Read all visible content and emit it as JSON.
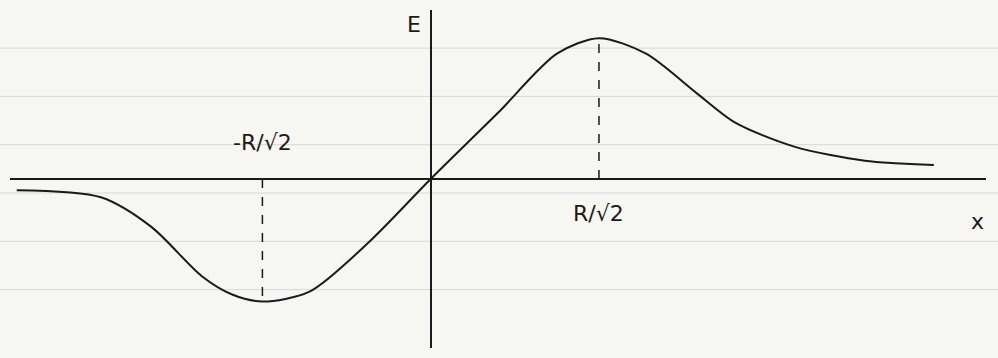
{
  "chart_data": {
    "type": "line",
    "x_label": "x",
    "y_label": "E",
    "x": [
      -2.46,
      -1.96,
      -1.66,
      -1.36,
      -1.18,
      -1,
      -0.72,
      -0.36,
      0,
      0.4,
      0.75,
      1,
      1.28,
      1.58,
      1.81,
      2.16,
      2.58,
      2.99
    ],
    "values": [
      -0.08,
      -0.13,
      -0.34,
      -0.69,
      -0.82,
      -0.87,
      -0.8,
      -0.44,
      0,
      0.47,
      0.89,
      1,
      0.89,
      0.61,
      0.4,
      0.23,
      0.13,
      0.1
    ],
    "color": "#1a1a1a",
    "xlim": [
      -2.5,
      3.3
    ],
    "ylim": [
      -1.2,
      1.2
    ],
    "xticks": [
      {
        "value": -1,
        "label": "-R/√2"
      },
      {
        "value": 1,
        "label": "R/√2"
      }
    ],
    "tick_labels": "x",
    "grid": false,
    "line_style": "solid"
  }
}
